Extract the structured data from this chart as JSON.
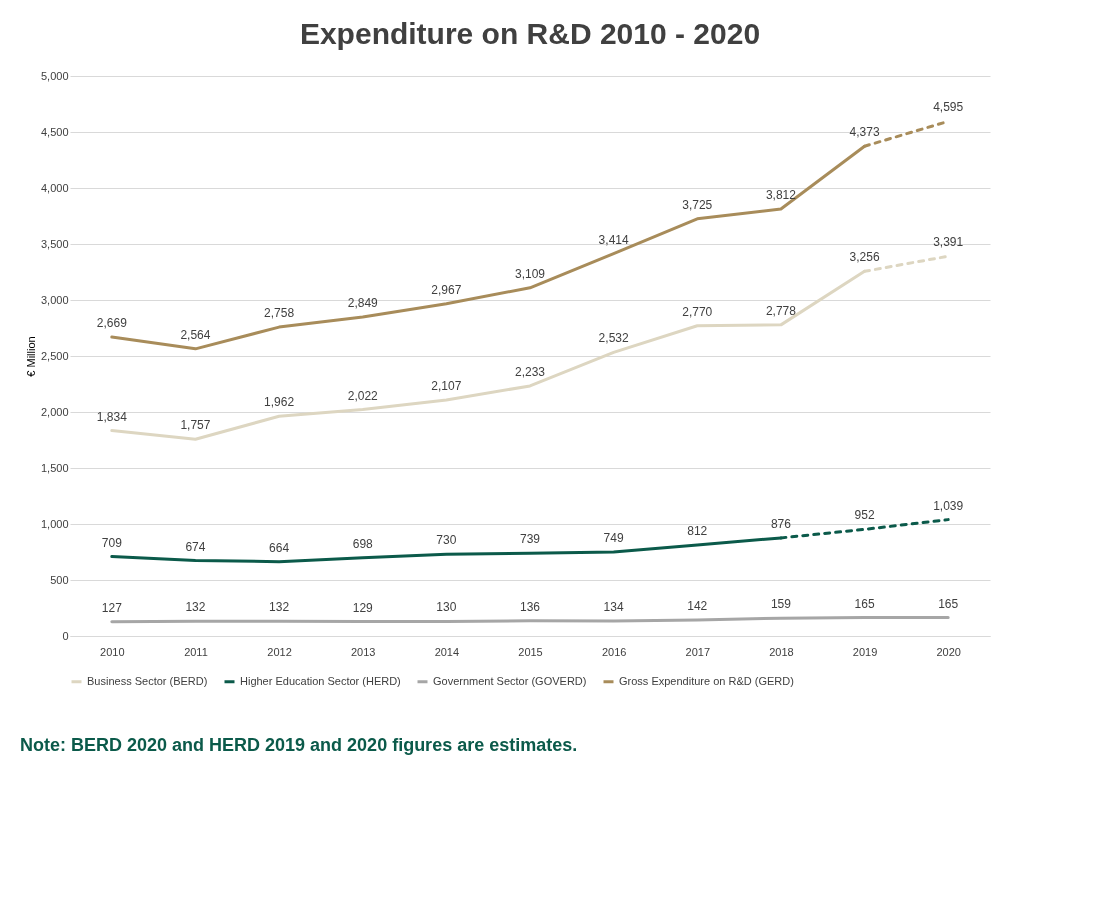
{
  "chart_data": {
    "type": "line",
    "title": "Expenditure on R&D 2010 - 2020",
    "ylabel": "€ Million",
    "categories": [
      "2010",
      "2011",
      "2012",
      "2013",
      "2014",
      "2015",
      "2016",
      "2017",
      "2018",
      "2019",
      "2020"
    ],
    "series": [
      {
        "name": "Business Sector (BERD)",
        "color": "#ddd6c1",
        "values": [
          1834,
          1757,
          1962,
          2022,
          2107,
          2233,
          2532,
          2770,
          2778,
          3256,
          null
        ],
        "value_labels": [
          "1,834",
          "1,757",
          "1,962",
          "2,022",
          "2,107",
          "2,233",
          "2,532",
          "2,770",
          "2,778",
          "3,256",
          null
        ]
      },
      {
        "color": "#ddd6c1",
        "values": [
          null,
          null,
          null,
          null,
          null,
          null,
          null,
          null,
          null,
          3256,
          3391
        ],
        "line_style": "dashed",
        "value_labels": [
          null,
          null,
          null,
          null,
          null,
          null,
          null,
          null,
          null,
          null,
          "3,391"
        ]
      },
      {
        "name": "Higher Education Sector (HERD)",
        "color": "#0b5a4a",
        "values": [
          709,
          674,
          664,
          698,
          730,
          739,
          749,
          812,
          876,
          null,
          null
        ],
        "value_labels": [
          "709",
          "674",
          "664",
          "698",
          "730",
          "739",
          "749",
          "812",
          "876",
          null,
          null
        ]
      },
      {
        "color": "#0b5a4a",
        "values": [
          null,
          null,
          null,
          null,
          null,
          null,
          null,
          null,
          876,
          952,
          1039
        ],
        "line_style": "dashed",
        "value_labels": [
          null,
          null,
          null,
          null,
          null,
          null,
          null,
          null,
          null,
          "952",
          "1,039"
        ]
      },
      {
        "name": "Government Sector (GOVERD)",
        "color": "#a6a6a6",
        "values": [
          127,
          132,
          132,
          129,
          130,
          136,
          134,
          142,
          159,
          165,
          165
        ],
        "value_labels": [
          "127",
          "132",
          "132",
          "129",
          "130",
          "136",
          "134",
          "142",
          "159",
          "165",
          "165"
        ]
      },
      {
        "name": "Gross Expenditure on R&D (GERD)",
        "color": "#a88c5a",
        "values": [
          2669,
          2564,
          2758,
          2849,
          2967,
          3109,
          3414,
          3725,
          3812,
          4373,
          null
        ],
        "value_labels": [
          "2,669",
          "2,564",
          "2,758",
          "2,849",
          "2,967",
          "3,109",
          "3,414",
          "3,725",
          "3,812",
          "4,373",
          null
        ]
      },
      {
        "color": "#a88c5a",
        "values": [
          null,
          null,
          null,
          null,
          null,
          null,
          null,
          null,
          null,
          4373,
          4595
        ],
        "line_style": "dashed",
        "value_labels": [
          null,
          null,
          null,
          null,
          null,
          null,
          null,
          null,
          null,
          null,
          "4,595"
        ]
      }
    ],
    "ylim": [
      0,
      5000
    ],
    "yticks": [
      0,
      500,
      {
        "value": 1000,
        "label": "1,000"
      },
      {
        "value": 1500,
        "label": "1,500"
      },
      {
        "value": 2000,
        "label": "2,000"
      },
      {
        "value": 2500,
        "label": "2,500"
      },
      {
        "value": 3000,
        "label": "3,000"
      },
      {
        "value": 3500,
        "label": "3,500"
      },
      {
        "value": 4000,
        "label": "4,000"
      },
      {
        "value": 4500,
        "label": "4,500"
      },
      {
        "value": 5000,
        "label": "5,000"
      }
    ],
    "grid": "y",
    "legend": "bottom",
    "marker": "none",
    "line_style": "solid",
    "annotations": [
      "Note: BERD 2020 and HERD 2019 and 2020 figures are estimates."
    ]
  }
}
